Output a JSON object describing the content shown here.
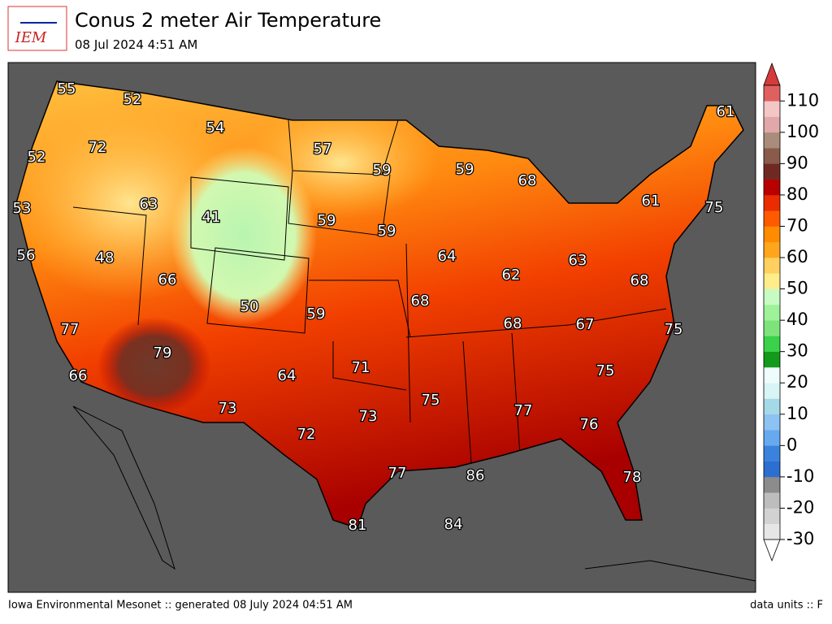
{
  "header": {
    "logo": "IEM",
    "title": "Conus 2 meter Air Temperature",
    "subtitle": "08 Jul 2024 4:51 AM"
  },
  "map": {
    "labels": [
      55,
      52,
      54,
      72,
      57,
      52,
      59,
      59,
      68,
      61,
      63,
      61,
      75,
      53,
      41,
      59,
      59,
      56,
      48,
      64,
      66,
      62,
      63,
      68,
      50,
      59,
      68,
      68,
      67,
      75,
      77,
      79,
      71,
      64,
      75,
      66,
      75,
      77,
      73,
      73,
      76,
      72,
      77,
      86,
      78,
      81,
      84
    ]
  },
  "colorbar": {
    "lim": [
      -30,
      115
    ],
    "ticks": [
      -30,
      -20,
      -10,
      0,
      10,
      20,
      30,
      40,
      50,
      60,
      70,
      80,
      90,
      100,
      110
    ],
    "colors": [
      "#e6e6e6",
      "#d2d2d2",
      "#bdbdbd",
      "#8c8c8c",
      "#2d6fd1",
      "#3b82dc",
      "#67a9ef",
      "#8cc3f2",
      "#a6d9e8",
      "#d8f4f4",
      "#eefcfc",
      "#139a1b",
      "#3ad14b",
      "#7fe37c",
      "#9df29a",
      "#c8fbc4",
      "#ffec8b",
      "#ffd060",
      "#ffa51e",
      "#ff8c00",
      "#ff5a00",
      "#ea2c00",
      "#b80000",
      "#6e2a22",
      "#8a5a4a",
      "#a98c7c",
      "#e0a8a8",
      "#f5c6c6",
      "#e06060"
    ]
  },
  "footer": {
    "left": "Iowa Environmental Mesonet :: generated 08 July 2024 04:51 AM",
    "right": "data units :: F"
  }
}
